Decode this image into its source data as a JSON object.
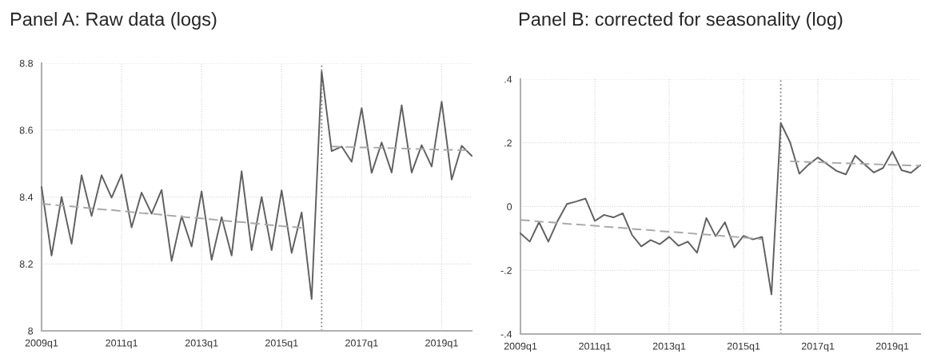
{
  "chart_data": [
    {
      "type": "line",
      "title": "Panel A: Raw data (logs)",
      "ylim": [
        8,
        8.8
      ],
      "categories": [
        "2009q1",
        null,
        null,
        null,
        null,
        null,
        null,
        null,
        "2011q1",
        null,
        null,
        null,
        null,
        null,
        null,
        null,
        "2013q1",
        null,
        null,
        null,
        null,
        null,
        null,
        null,
        "2015q1",
        null,
        null,
        null,
        null,
        null,
        null,
        null,
        "2017q1",
        null,
        null,
        null,
        null,
        null,
        null,
        null,
        "2019q1",
        null,
        null,
        null
      ],
      "yticks": [
        8,
        8.2,
        8.4,
        8.6,
        8.8
      ],
      "grid": true,
      "line_style": "solid",
      "marker": "none",
      "series": [
        {
          "color": "#606060",
          "values": [
            8.43,
            8.225,
            8.4,
            8.26,
            8.465,
            8.343,
            8.465,
            8.398,
            8.467,
            8.309,
            8.413,
            8.35,
            8.421,
            8.209,
            8.343,
            8.252,
            8.417,
            8.212,
            8.34,
            8.225,
            8.477,
            8.241,
            8.4,
            8.241,
            8.42,
            8.233,
            8.354,
            8.095,
            8.775,
            8.537,
            8.551,
            8.505,
            8.666,
            8.472,
            8.563,
            8.473,
            8.674,
            8.473,
            8.555,
            8.491,
            8.685,
            8.452,
            8.553,
            8.523
          ]
        },
        {
          "type": "line",
          "color": "#a8a8a8",
          "line_style": "dashed",
          "values": [
            8.38,
            8.377,
            8.374,
            8.372,
            8.369,
            8.366,
            8.363,
            8.361,
            8.358,
            8.355,
            8.352,
            8.35,
            8.347,
            8.344,
            8.341,
            8.338,
            8.336,
            8.333,
            8.33,
            8.327,
            8.325,
            8.322,
            8.319,
            8.316,
            8.313,
            8.311,
            8.308,
            null,
            null,
            null,
            null,
            null,
            null,
            null,
            null,
            null,
            null,
            null,
            null,
            null,
            null,
            null,
            null,
            null
          ]
        },
        {
          "type": "line",
          "color": "#a8a8a8",
          "line_style": "dashed",
          "values": [
            null,
            null,
            null,
            null,
            null,
            null,
            null,
            null,
            null,
            null,
            null,
            null,
            null,
            null,
            null,
            null,
            null,
            null,
            null,
            null,
            null,
            null,
            null,
            null,
            null,
            null,
            null,
            null,
            null,
            8.551,
            8.55,
            8.549,
            8.548,
            8.548,
            8.547,
            8.546,
            8.545,
            8.544,
            8.543,
            8.542,
            8.541,
            8.541,
            8.54,
            8.539
          ]
        }
      ]
    },
    {
      "type": "line",
      "title": "Panel B: corrected for seasonality (log)",
      "ylim": [
        -0.4,
        0.4
      ],
      "categories": [
        "2009q1",
        null,
        null,
        null,
        null,
        null,
        null,
        null,
        "2011q1",
        null,
        null,
        null,
        null,
        null,
        null,
        null,
        "2013q1",
        null,
        null,
        null,
        null,
        null,
        null,
        null,
        "2015q1",
        null,
        null,
        null,
        null,
        null,
        null,
        null,
        "2017q1",
        null,
        null,
        null,
        null,
        null,
        null,
        null,
        "2019q1",
        null,
        null,
        null
      ],
      "yticks": [
        {
          "value": -0.4,
          "label": "-.4"
        },
        {
          "value": -0.2,
          "label": "-.2"
        },
        0,
        {
          "value": 0.2,
          "label": ".2"
        },
        {
          "value": 0.4,
          "label": ".4"
        }
      ],
      "grid": true,
      "line_style": "solid",
      "marker": "none",
      "series": [
        {
          "color": "#606060",
          "values": [
            -0.084,
            -0.11,
            -0.049,
            -0.11,
            -0.045,
            0.008,
            0.016,
            0.025,
            -0.045,
            -0.026,
            -0.034,
            -0.021,
            -0.089,
            -0.125,
            -0.105,
            -0.118,
            -0.095,
            -0.123,
            -0.11,
            -0.145,
            -0.036,
            -0.093,
            -0.049,
            -0.128,
            -0.092,
            -0.103,
            -0.095,
            -0.276,
            0.262,
            0.202,
            0.103,
            0.132,
            0.154,
            0.133,
            0.112,
            0.101,
            0.16,
            0.133,
            0.107,
            0.121,
            0.173,
            0.114,
            0.106,
            0.13
          ]
        },
        {
          "type": "line",
          "color": "#a8a8a8",
          "line_style": "dashed",
          "values": [
            -0.042,
            -0.044,
            -0.047,
            -0.049,
            -0.051,
            -0.054,
            -0.056,
            -0.058,
            -0.06,
            -0.063,
            -0.065,
            -0.067,
            -0.07,
            -0.072,
            -0.074,
            -0.077,
            -0.079,
            -0.081,
            -0.083,
            -0.086,
            -0.088,
            -0.09,
            -0.093,
            -0.095,
            -0.097,
            -0.1,
            -0.102,
            null,
            null,
            null,
            null,
            null,
            null,
            null,
            null,
            null,
            null,
            null,
            null,
            null,
            null,
            null,
            null,
            null
          ]
        },
        {
          "type": "line",
          "color": "#a8a8a8",
          "line_style": "dashed",
          "values": [
            null,
            null,
            null,
            null,
            null,
            null,
            null,
            null,
            null,
            null,
            null,
            null,
            null,
            null,
            null,
            null,
            null,
            null,
            null,
            null,
            null,
            null,
            null,
            null,
            null,
            null,
            null,
            null,
            null,
            0.142,
            0.141,
            0.14,
            0.139,
            0.138,
            0.137,
            0.136,
            0.135,
            0.134,
            0.133,
            0.132,
            0.131,
            0.13,
            0.129,
            0.128
          ]
        }
      ]
    }
  ]
}
